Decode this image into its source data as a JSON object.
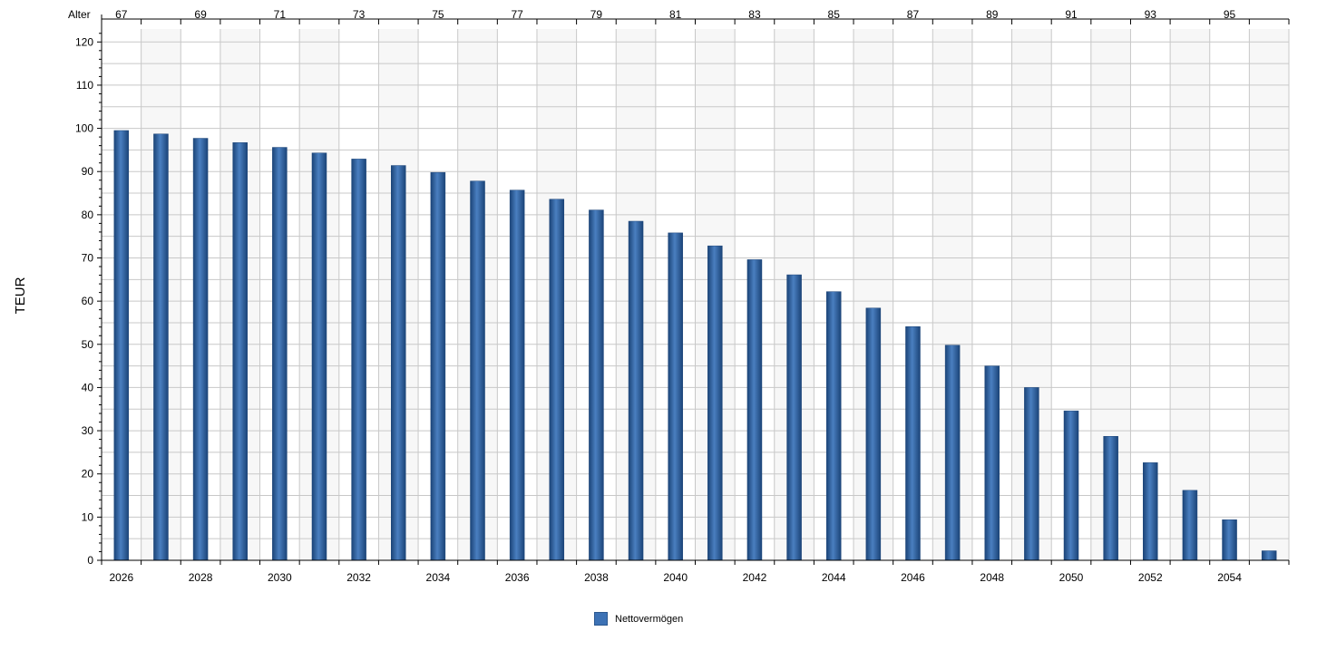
{
  "chart_data": {
    "type": "bar",
    "ylabel": "TEUR",
    "ylim": [
      0,
      123
    ],
    "yticks": [
      0,
      10,
      20,
      30,
      40,
      50,
      60,
      70,
      80,
      90,
      100,
      110,
      120
    ],
    "grid": true,
    "top_axis_label": "Alter",
    "categories": [
      2026,
      2027,
      2028,
      2029,
      2030,
      2031,
      2032,
      2033,
      2034,
      2035,
      2036,
      2037,
      2038,
      2039,
      2040,
      2041,
      2042,
      2043,
      2044,
      2045,
      2046,
      2047,
      2048,
      2049,
      2050,
      2051,
      2052,
      2053,
      2054,
      2055
    ],
    "x_tick_labels": [
      "2026",
      "2028",
      "2030",
      "2032",
      "2034",
      "2036",
      "2038",
      "2040",
      "2042",
      "2044",
      "2046",
      "2048",
      "2050",
      "2052",
      "2054"
    ],
    "age_tick_labels": [
      "67",
      "69",
      "71",
      "73",
      "75",
      "77",
      "79",
      "81",
      "83",
      "85",
      "87",
      "89",
      "91",
      "93",
      "95"
    ],
    "series": [
      {
        "name": "Nettovermögen",
        "color": "#2a5a97",
        "values": [
          99.5,
          98.7,
          97.7,
          96.7,
          95.6,
          94.3,
          92.9,
          91.4,
          89.8,
          87.8,
          85.7,
          83.6,
          81.1,
          78.5,
          75.8,
          72.8,
          69.6,
          66.1,
          62.2,
          58.4,
          54.1,
          49.8,
          45.0,
          40.0,
          34.6,
          28.7,
          22.6,
          16.2,
          9.4,
          2.2
        ]
      }
    ]
  },
  "legend": {
    "label": "Nettovermögen"
  },
  "colors": {
    "bar_dark": "#1b4478",
    "bar_light": "#4a7fc0",
    "grid": "#c8c8c8",
    "band": "#f7f7f7"
  }
}
